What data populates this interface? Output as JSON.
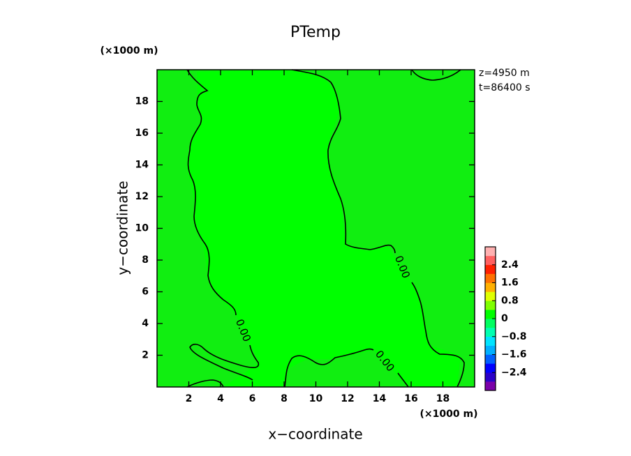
{
  "chart_data": {
    "type": "contour",
    "title": "PTemp",
    "xlabel": "x−coordinate",
    "ylabel": "y−coordinate",
    "x_unit": "(×1000 m)",
    "y_unit": "(×1000 m)",
    "annotations": [
      "z=4950 m",
      "t=86400 s"
    ],
    "xlim": [
      0,
      20
    ],
    "ylim": [
      0,
      20
    ],
    "xticks": [
      2,
      4,
      6,
      8,
      10,
      12,
      14,
      16,
      18
    ],
    "yticks": [
      2,
      4,
      6,
      8,
      10,
      12,
      14,
      16,
      18
    ],
    "contours": {
      "levels": [
        0
      ],
      "labels": [
        "0.00"
      ],
      "color": "#000000"
    },
    "colorbar": {
      "lim": [
        -3.2,
        3.2
      ],
      "ticks": [
        {
          "value": -2.4,
          "label": "−2.4"
        },
        {
          "value": -1.6,
          "label": "−1.6"
        },
        {
          "value": -0.8,
          "label": "−0.8"
        },
        0,
        0.8,
        1.6,
        2.4
      ],
      "colors": [
        "#7a00a8",
        "#2a00c8",
        "#0000ff",
        "#0060ff",
        "#00b0ff",
        "#00e4ff",
        "#00ffb0",
        "#00ff60",
        "#00ff00",
        "#80ff00",
        "#e0ff00",
        "#ffb000",
        "#ff7000",
        "#ff2000",
        "#ff6060",
        "#ffb0b0"
      ]
    },
    "field_color": "#11ee11"
  }
}
